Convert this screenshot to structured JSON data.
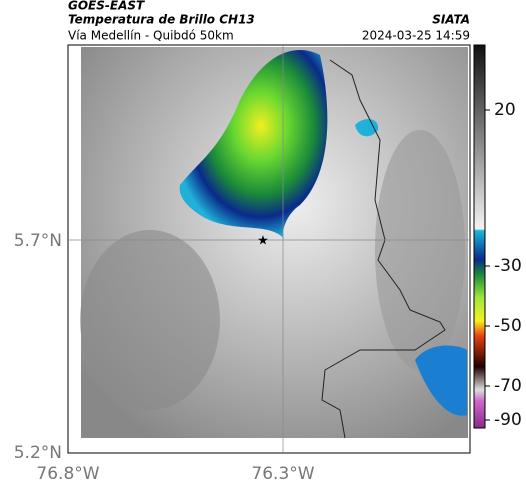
{
  "header": {
    "source": "GOES-EAST",
    "title": "Temperatura de Brillo CH13",
    "org": "SIATA",
    "subtitle": "Vía Medellín - Quibdó 50km",
    "datetime": "2024-03-25 14:59"
  },
  "map": {
    "lat_labels": [
      "5.7°N",
      "5.2°N"
    ],
    "lon_labels": [
      "76.8°W",
      "76.3°W"
    ]
  },
  "colorbar": {
    "ticks": [
      "20",
      "-30",
      "-50",
      "-70",
      "-90"
    ]
  }
}
